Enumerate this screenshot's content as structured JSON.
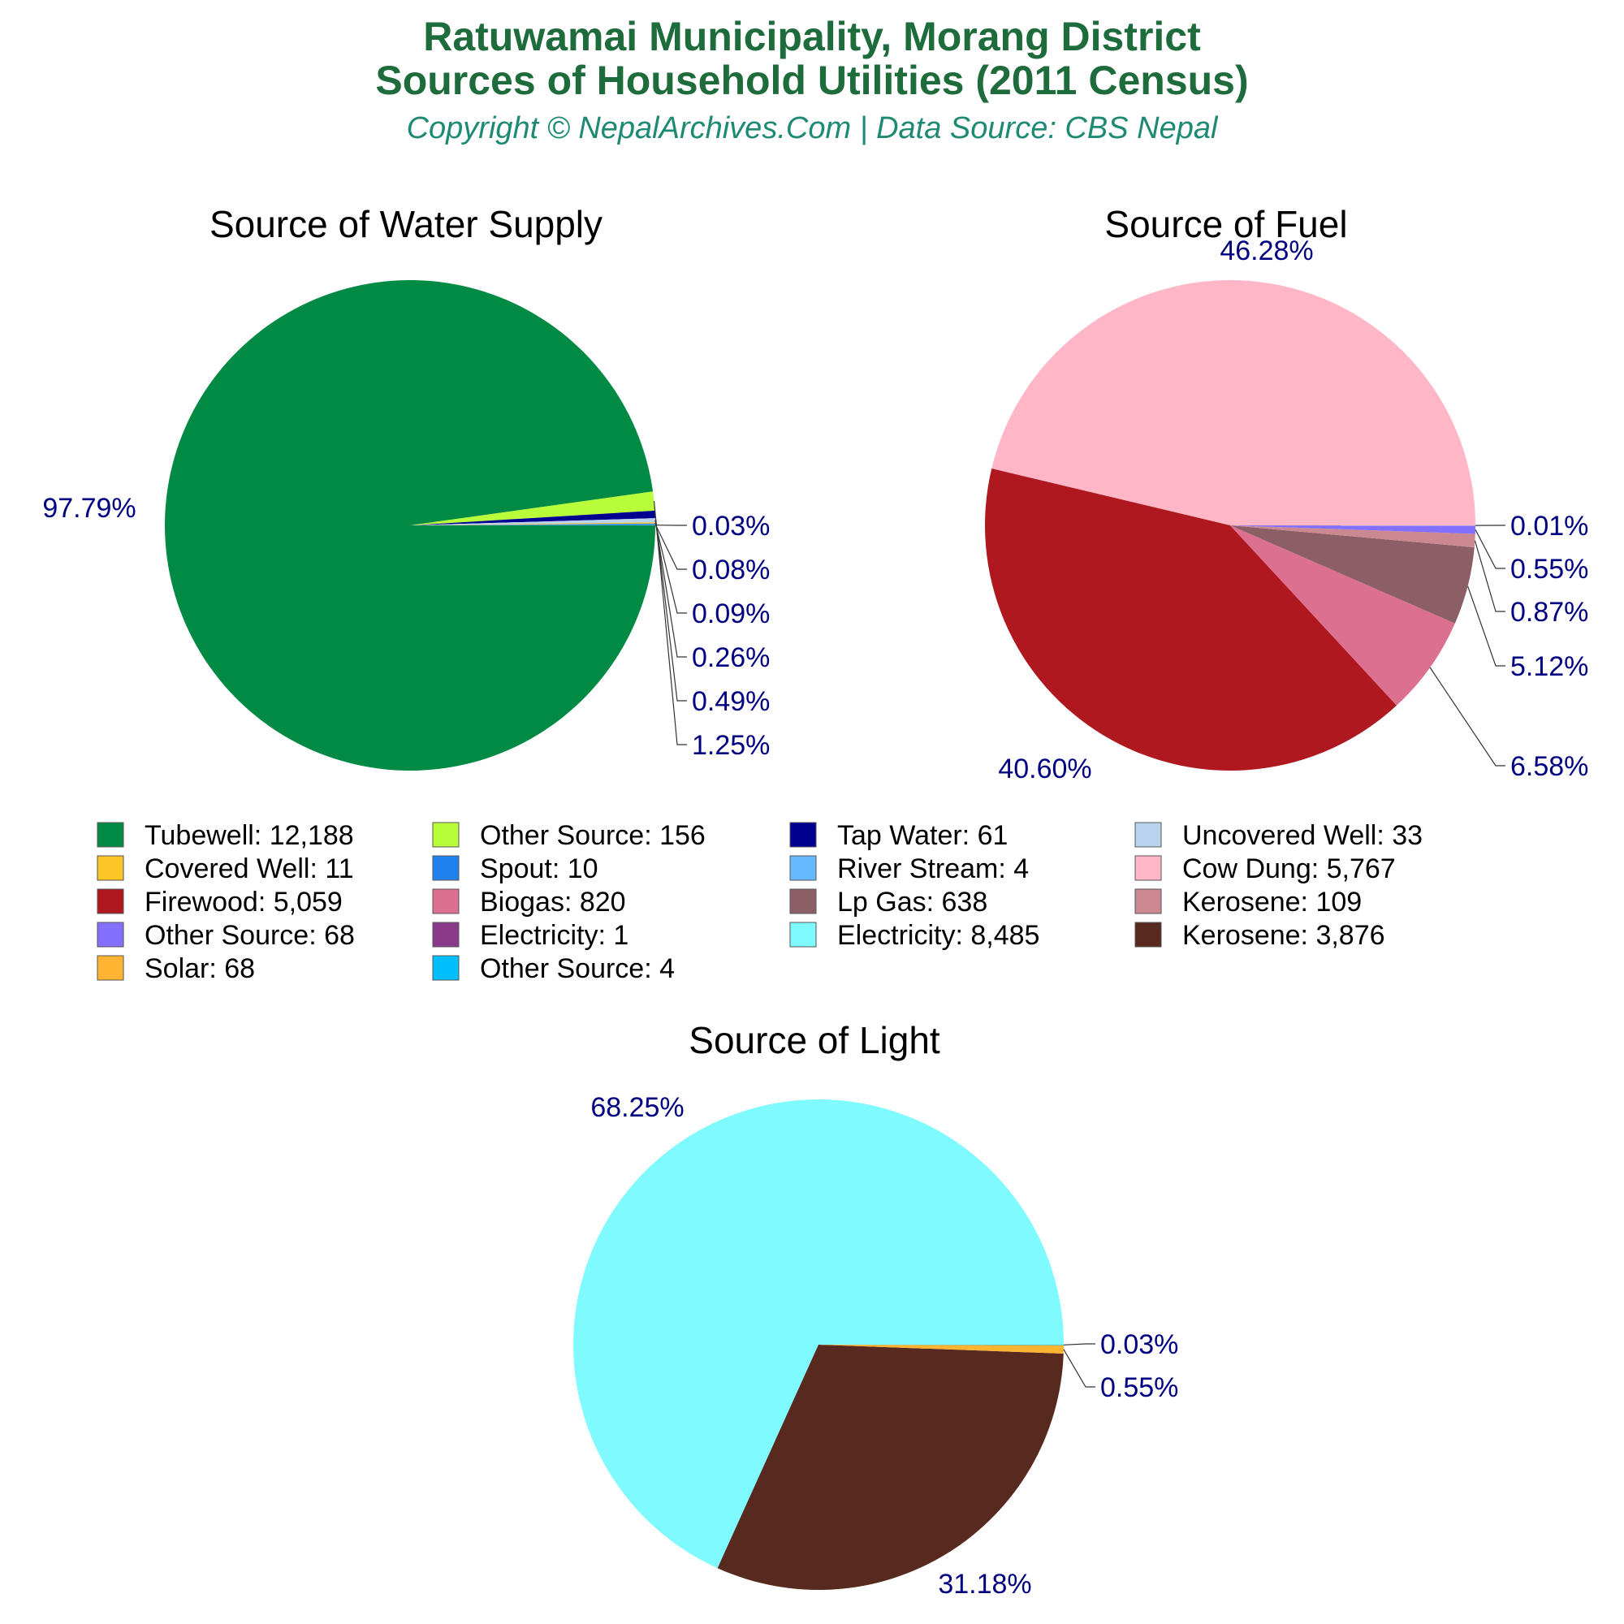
{
  "header": {
    "title_line1": "Ratuwamai Municipality, Morang District",
    "title_line2": "Sources of Household Utilities (2011 Census)",
    "subtitle": "Copyright © NepalArchives.Com | Data Source: CBS Nepal"
  },
  "chart_data": [
    {
      "type": "pie",
      "title": "Source of Water Supply",
      "slices": [
        {
          "name": "Tubewell",
          "value": 12188,
          "label": "97.79%",
          "color": "#008a43"
        },
        {
          "name": "Other Source",
          "value": 156,
          "label": "1.25%",
          "color": "#b8ff3a"
        },
        {
          "name": "Tap Water",
          "value": 61,
          "label": "0.49%",
          "color": "#000090"
        },
        {
          "name": "Uncovered Well",
          "value": 33,
          "label": "0.26%",
          "color": "#b9d3ee"
        },
        {
          "name": "Covered Well",
          "value": 11,
          "label": "0.09%",
          "color": "#ffc425"
        },
        {
          "name": "Spout",
          "value": 10,
          "label": "0.08%",
          "color": "#1f82ef"
        },
        {
          "name": "River Stream",
          "value": 4,
          "label": "0.03%",
          "color": "#66b8ff"
        }
      ]
    },
    {
      "type": "pie",
      "title": "Source of Fuel",
      "slices": [
        {
          "name": "Cow Dung",
          "value": 5767,
          "label": "46.28%",
          "color": "#ffb6c6"
        },
        {
          "name": "Firewood",
          "value": 5059,
          "label": "40.60%",
          "color": "#b01820"
        },
        {
          "name": "Biogas",
          "value": 820,
          "label": "6.58%",
          "color": "#dc7090"
        },
        {
          "name": "Lp Gas",
          "value": 638,
          "label": "5.12%",
          "color": "#8b5f65"
        },
        {
          "name": "Kerosene",
          "value": 109,
          "label": "0.87%",
          "color": "#cc8890"
        },
        {
          "name": "Other Source",
          "value": 68,
          "label": "0.55%",
          "color": "#8470ff"
        },
        {
          "name": "Electricity",
          "value": 1,
          "label": "0.01%",
          "color": "#8b3a8b"
        }
      ]
    },
    {
      "type": "pie",
      "title": "Source of Light",
      "slices": [
        {
          "name": "Electricity",
          "value": 8485,
          "label": "68.25%",
          "color": "#7ffaff"
        },
        {
          "name": "Kerosene",
          "value": 3876,
          "label": "31.18%",
          "color": "#58291f"
        },
        {
          "name": "Solar",
          "value": 68,
          "label": "0.55%",
          "color": "#ffb432"
        },
        {
          "name": "Other Source",
          "value": 4,
          "label": "0.03%",
          "color": "#00bfff"
        }
      ]
    }
  ],
  "legend": [
    {
      "label": "Tubewell: 12,188",
      "color": "#008a43"
    },
    {
      "label": "Covered Well: 11",
      "color": "#ffc425"
    },
    {
      "label": "Firewood: 5,059",
      "color": "#b01820"
    },
    {
      "label": "Other Source: 68",
      "color": "#8470ff"
    },
    {
      "label": "Solar: 68",
      "color": "#ffb432"
    },
    {
      "label": "Other Source: 156",
      "color": "#b8ff3a"
    },
    {
      "label": "Spout: 10",
      "color": "#1f82ef"
    },
    {
      "label": "Biogas: 820",
      "color": "#dc7090"
    },
    {
      "label": "Electricity: 1",
      "color": "#8b3a8b"
    },
    {
      "label": "Other Source: 4",
      "color": "#00bfff"
    },
    {
      "label": "Tap Water: 61",
      "color": "#000090"
    },
    {
      "label": "River Stream: 4",
      "color": "#66b8ff"
    },
    {
      "label": "Lp Gas: 638",
      "color": "#8b5f65"
    },
    {
      "label": "Electricity: 8,485",
      "color": "#7ffaff"
    },
    {
      "label": "Uncovered Well: 33",
      "color": "#b9d3ee"
    },
    {
      "label": "Cow Dung: 5,767",
      "color": "#ffb6c6"
    },
    {
      "label": "Kerosene: 109",
      "color": "#cc8890"
    },
    {
      "label": "Kerosene: 3,876",
      "color": "#58291f"
    }
  ]
}
